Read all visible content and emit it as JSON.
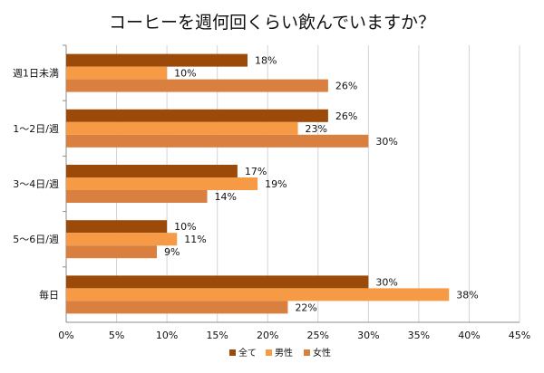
{
  "chart_data": {
    "type": "bar",
    "orientation": "horizontal",
    "title": "コーヒーを週何回くらい飲んでいますか？",
    "categories": [
      "週1日未満",
      "1～2日/週",
      "3～4日/週",
      "5～6日/週",
      "毎日"
    ],
    "series": [
      {
        "name": "全て",
        "color": "#9C4A09",
        "values": [
          18,
          26,
          17,
          10,
          30
        ],
        "labels": [
          "18%",
          "26%",
          "17%",
          "10%",
          "30%"
        ]
      },
      {
        "name": "男性",
        "color": "#F79A45",
        "values": [
          10,
          23,
          19,
          11,
          38
        ],
        "labels": [
          "10%",
          "23%",
          "19%",
          "11%",
          "38%"
        ]
      },
      {
        "name": "女性",
        "color": "#D98040",
        "values": [
          26,
          30,
          14,
          9,
          22
        ],
        "labels": [
          "26%",
          "30%",
          "14%",
          "9%",
          "22%"
        ]
      }
    ],
    "x_ticks": [
      "0%",
      "5%",
      "10%",
      "15%",
      "20%",
      "25%",
      "30%",
      "35%",
      "40%",
      "45%"
    ],
    "xlim": [
      0,
      45
    ],
    "grid": true,
    "legend_position": "bottom"
  }
}
